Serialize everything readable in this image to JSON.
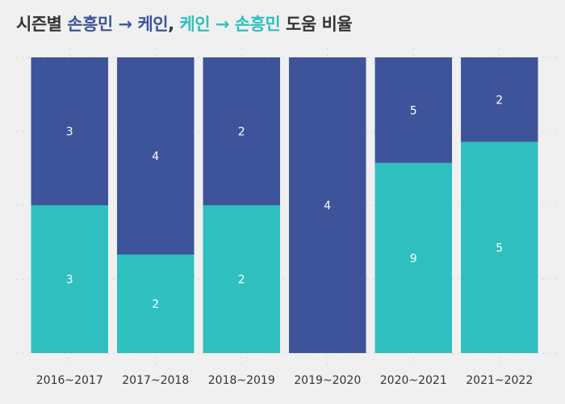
{
  "title": {
    "prefix": "시즌별 ",
    "a1": "손흥민 → 케인",
    "sep": ", ",
    "b1": "케인 → 손흥민",
    "suffix": " 도움 비율"
  },
  "colors": {
    "son_to_kane": "#3e549a",
    "kane_to_son": "#30bfbf",
    "background": "#f0f0f0",
    "text": "#333333",
    "grid": "#cccccc"
  },
  "chart_data": {
    "type": "bar",
    "stacked": true,
    "normalized": true,
    "categories": [
      "2016~2017",
      "2017~2018",
      "2018~2019",
      "2019~2020",
      "2020~2021",
      "2021~2022"
    ],
    "series": [
      {
        "key": "kane_to_son",
        "values": [
          3,
          2,
          2,
          0,
          9,
          5
        ]
      },
      {
        "key": "son_to_kane",
        "values": [
          3,
          4,
          2,
          4,
          5,
          2
        ]
      }
    ],
    "ylim": [
      0,
      1
    ],
    "grid": true,
    "legend": "none"
  }
}
